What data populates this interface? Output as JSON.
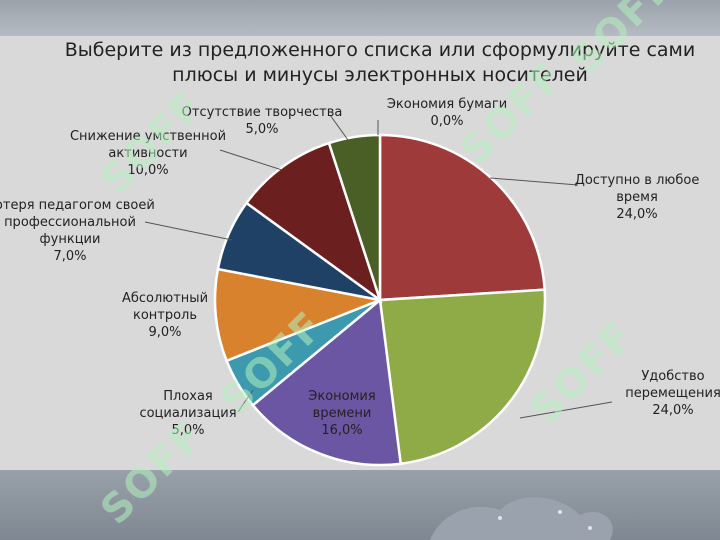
{
  "title_line1": "Выберите из предложенного списка или сформулируйте сами",
  "title_line2": "плюсы и минусы электронных носителей",
  "watermark_text": "SOFF",
  "chart_data": {
    "type": "pie",
    "title": "Выберите из предложенного списка или сформулируйте сами плюсы и минусы электронных носителей",
    "start": "top, clockwise",
    "series": [
      {
        "label_lines": [
          "Экономия бумаги"
        ],
        "value": 0.0,
        "value_label": "0,0%",
        "color": "#7d7d7d"
      },
      {
        "label_lines": [
          "Доступно в любое",
          "время"
        ],
        "value": 24.0,
        "value_label": "24,0%",
        "color": "#9e3a3a"
      },
      {
        "label_lines": [
          "Удобство",
          "перемещения"
        ],
        "value": 24.0,
        "value_label": "24,0%",
        "color": "#8fab47"
      },
      {
        "label_lines": [
          "Экономия",
          "времени"
        ],
        "value": 16.0,
        "value_label": "16,0%",
        "color": "#6a56a3"
      },
      {
        "label_lines": [
          "Плохая",
          "социализация"
        ],
        "value": 5.0,
        "value_label": "5,0%",
        "color": "#3d9aae"
      },
      {
        "label_lines": [
          "Абсолютный",
          "контроль"
        ],
        "value": 9.0,
        "value_label": "9,0%",
        "color": "#d9822e"
      },
      {
        "label_lines": [
          "Потеря педагогом своей",
          "профессиональной",
          "функции"
        ],
        "value": 7.0,
        "value_label": "7,0%",
        "color": "#1f4166"
      },
      {
        "label_lines": [
          "Снижение умственной",
          "активности"
        ],
        "value": 10.0,
        "value_label": "10,0%",
        "color": "#6b1f1f"
      },
      {
        "label_lines": [
          "Отсутствие творчества"
        ],
        "value": 5.0,
        "value_label": "5,0%",
        "color": "#4a5f26"
      }
    ]
  }
}
